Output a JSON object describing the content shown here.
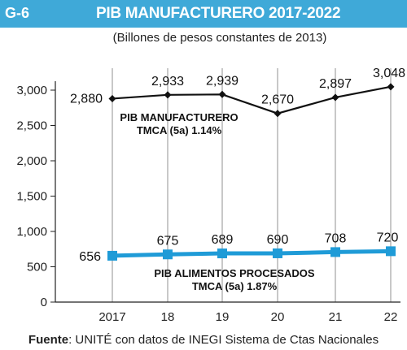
{
  "header": {
    "figure_id": "G-6",
    "title": "PIB MANUFACTURERO 2017-2022"
  },
  "subtitle": "(Billones de pesos constantes de 2013)",
  "source": {
    "label": "Fuente",
    "text": ": UNITÉ con datos de INEGI Sistema de Ctas Nacionales"
  },
  "colors": {
    "header": "#3fa9d8",
    "series_manufacturero": "#111111",
    "series_alimentos": "#1f9bd7",
    "grid": "#c8c8c8"
  },
  "chart_data": {
    "type": "line",
    "categories": [
      "2017",
      "18",
      "19",
      "20",
      "21",
      "22"
    ],
    "ylim": [
      0,
      3000
    ],
    "yticks": [
      "0",
      "500",
      "1,000",
      "1,500",
      "2,000",
      "2,500",
      "3,000"
    ],
    "ytick_values": [
      0,
      500,
      1000,
      1500,
      2000,
      2500,
      3000
    ],
    "grid": "vertical",
    "series": [
      {
        "values": [
          2880,
          2933,
          2939,
          2670,
          2897,
          3048
        ],
        "labels": [
          "2,880",
          "2,933",
          "2,939",
          "2,670",
          "2,897",
          "3,048"
        ],
        "marker": "diamond",
        "annotation": [
          "PIB MANUFACTURERO",
          "TMCA (5a) 1.14%"
        ]
      },
      {
        "values": [
          656,
          675,
          689,
          690,
          708,
          720
        ],
        "labels": [
          "656",
          "675",
          "689",
          "690",
          "708",
          "720"
        ],
        "marker": "square",
        "annotation": [
          "PIB ALIMENTOS PROCESADOS",
          "TMCA (5a) 1.87%"
        ]
      }
    ]
  }
}
